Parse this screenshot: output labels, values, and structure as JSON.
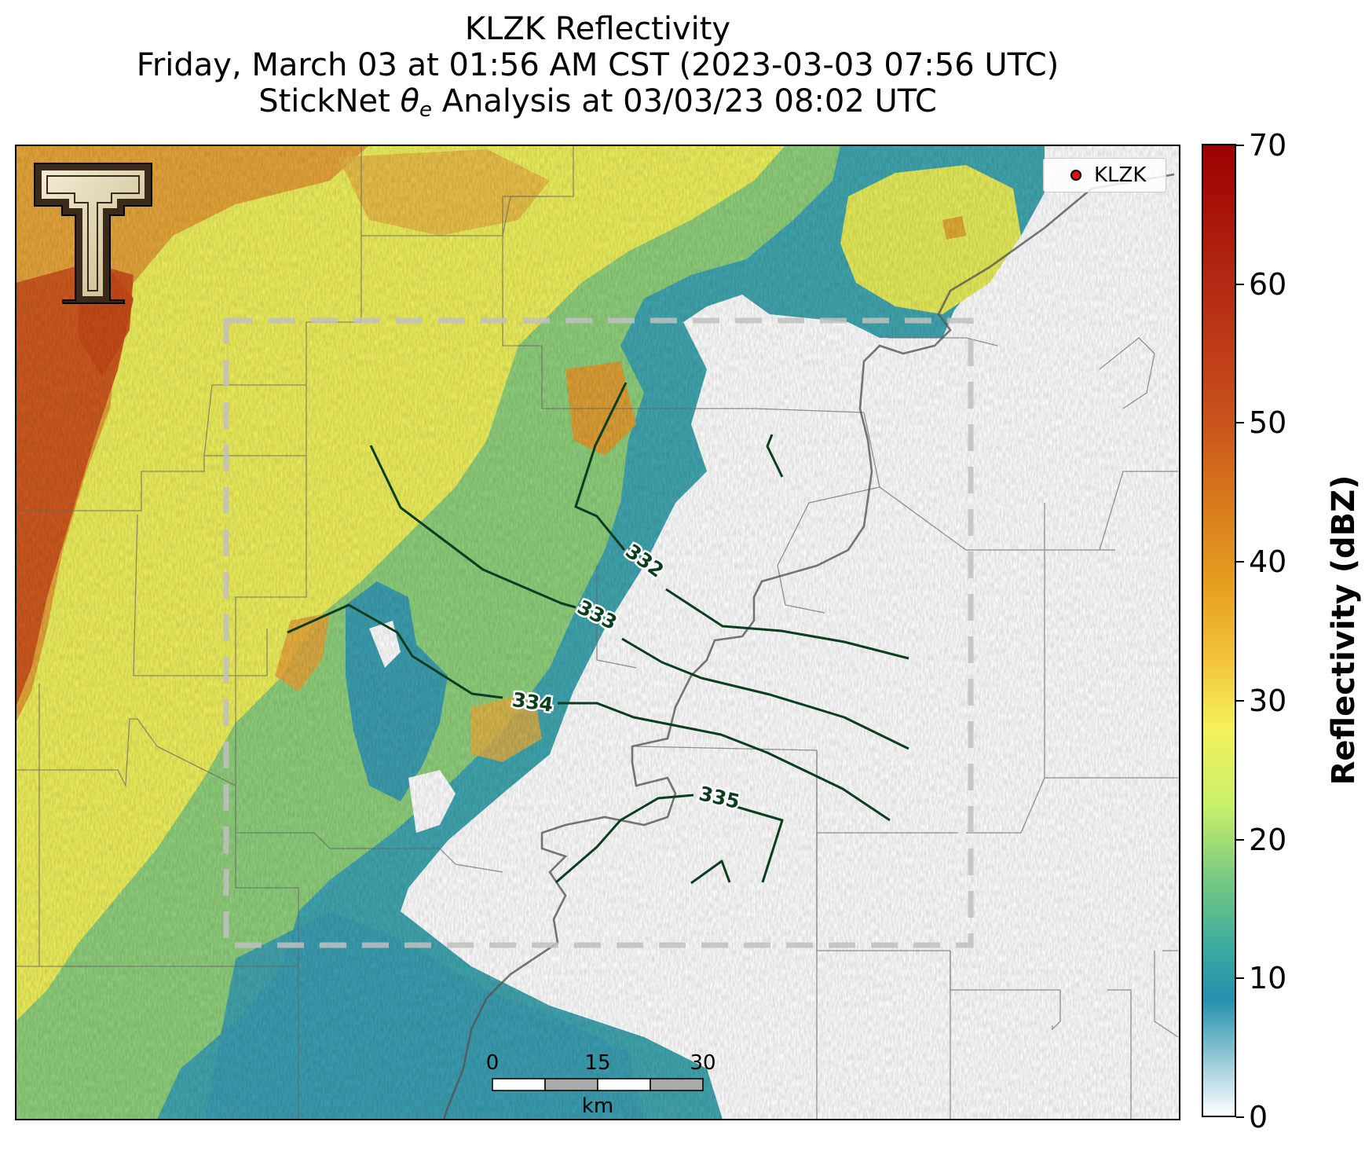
{
  "title": {
    "line1": "KLZK Reflectivity",
    "line2": "Friday, March 03 at 01:56 AM CST (2023-03-03 07:56 UTC)",
    "line3_prefix": "StickNet ",
    "line3_symbol": "θ",
    "line3_subscript": "e",
    "line3_suffix": " Analysis at 03/03/23 08:02 UTC"
  },
  "legend": {
    "label": "KLZK",
    "marker_color": "#e01010"
  },
  "colorbar": {
    "title": "Reflectivity (dBZ)",
    "min": 0,
    "max": 70,
    "ticks": [
      "0",
      "10",
      "20",
      "30",
      "40",
      "50",
      "60",
      "70"
    ]
  },
  "contours": {
    "color": "#0b3d1e",
    "levels": [
      "332",
      "333",
      "334",
      "335"
    ]
  },
  "scalebar": {
    "ticks": [
      "0",
      "15",
      "30"
    ],
    "unit": "km"
  },
  "logo": {
    "name": "Texas Tech double-T logo"
  },
  "analysis_box": {
    "style": "dashed",
    "color": "#c0c0c0"
  }
}
